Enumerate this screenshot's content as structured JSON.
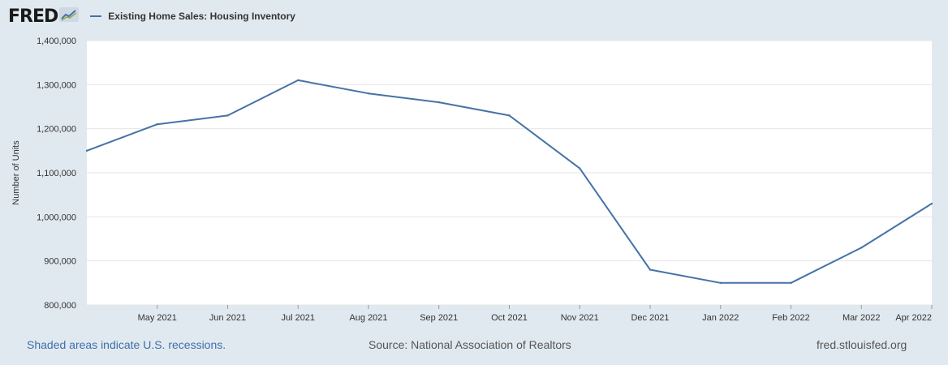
{
  "header": {
    "logo_text": "FRED",
    "legend_label": "Existing Home Sales: Housing Inventory"
  },
  "footer": {
    "recession_note": "Shaded areas indicate U.S. recessions.",
    "source": "Source: National Association of Realtors",
    "site": "fred.stlouisfed.org"
  },
  "colors": {
    "series": "#4572a7",
    "page_background": "#e1e9f0",
    "plot_background": "#ffffff",
    "grid": "#e6e6e6"
  },
  "chart_data": {
    "type": "line",
    "title": "",
    "xlabel": "",
    "ylabel": "Number of Units",
    "ylim": [
      800000,
      1400000
    ],
    "y_ticks": [
      800000,
      900000,
      1000000,
      1100000,
      1200000,
      1300000,
      1400000
    ],
    "y_tick_labels": [
      "800,000",
      "900,000",
      "1,000,000",
      "1,100,000",
      "1,200,000",
      "1,300,000",
      "1,400,000"
    ],
    "x": [
      "Apr 2021",
      "May 2021",
      "Jun 2021",
      "Jul 2021",
      "Aug 2021",
      "Sep 2021",
      "Oct 2021",
      "Nov 2021",
      "Dec 2021",
      "Jan 2022",
      "Feb 2022",
      "Mar 2022",
      "Apr 2022"
    ],
    "x_tick_labels": [
      "May 2021",
      "Jun 2021",
      "Jul 2021",
      "Aug 2021",
      "Sep 2021",
      "Oct 2021",
      "Nov 2021",
      "Dec 2021",
      "Jan 2022",
      "Feb 2022",
      "Mar 2022",
      "Apr 2022"
    ],
    "series": [
      {
        "name": "Existing Home Sales: Housing Inventory",
        "values": [
          1150000,
          1210000,
          1230000,
          1310000,
          1280000,
          1260000,
          1230000,
          1110000,
          880000,
          850000,
          850000,
          930000,
          1030000
        ]
      }
    ],
    "grid": true,
    "legend": "top-left"
  }
}
